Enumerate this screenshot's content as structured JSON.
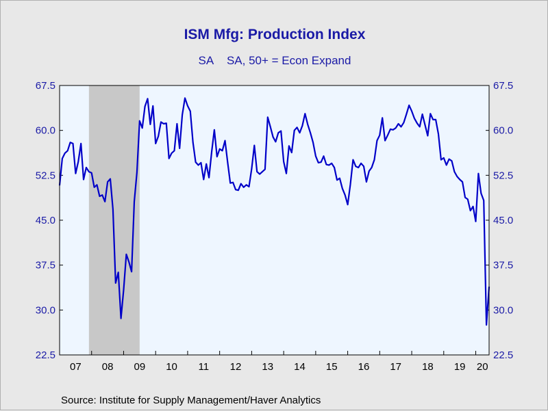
{
  "header": {
    "title": "ISM Mfg: Production Index",
    "subtitle_left": "SA",
    "subtitle_right": "SA, 50+ = Econ Expand"
  },
  "footer": {
    "source": "Source:  Institute for Supply Management/Haver Analytics"
  },
  "colors": {
    "line": "#0000c8",
    "plot_background": "#eef6ff",
    "recession": "#c8c8c8",
    "axis_text": "#1a1aa6"
  },
  "chart_data": {
    "type": "line",
    "title": "ISM Mfg: Production Index",
    "subtitle": "SA    SA, 50+ = Econ Expand",
    "frequency": "monthly",
    "start": "2007-01",
    "xlim": [
      "2007-01",
      "2020-06"
    ],
    "ylim": [
      22.5,
      67.5
    ],
    "y_ticks": [
      "22.5",
      "30.0",
      "37.5",
      "45.0",
      "52.5",
      "60.0",
      "67.5"
    ],
    "x_tick_labels": [
      "07",
      "08",
      "09",
      "10",
      "11",
      "12",
      "13",
      "14",
      "15",
      "16",
      "17",
      "18",
      "19",
      "20"
    ],
    "grid": false,
    "dual_y_axis": true,
    "shaded_period": {
      "label": "recession",
      "start": "2007-12",
      "end": "2009-06"
    },
    "series": [
      {
        "values": [
          50.8,
          55.3,
          56.2,
          56.6,
          58.0,
          57.8,
          52.8,
          54.8,
          57.8,
          51.8,
          53.8,
          53.1,
          52.9,
          50.5,
          50.9,
          49.0,
          49.2,
          48.1,
          51.4,
          51.9,
          46.8,
          34.5,
          36.3,
          28.6,
          33.4,
          39.3,
          38.0,
          36.4,
          48.1,
          53.0,
          61.6,
          60.4,
          64.0,
          65.3,
          61.0,
          64.1,
          57.8,
          59.0,
          61.4,
          61.1,
          61.2,
          55.3,
          56.2,
          56.6,
          61.1,
          57.0,
          62.6,
          65.4,
          64.1,
          63.2,
          58.0,
          54.7,
          54.2,
          54.6,
          51.8,
          54.4,
          52.1,
          56.4,
          60.1,
          55.6,
          56.9,
          56.6,
          58.3,
          54.7,
          51.2,
          51.3,
          50.1,
          50.0,
          51.1,
          50.5,
          50.9,
          50.6,
          53.6,
          57.5,
          53.1,
          52.7,
          53.1,
          53.5,
          62.2,
          60.6,
          58.9,
          58.1,
          59.6,
          59.9,
          54.8,
          52.8,
          57.4,
          56.3,
          60.0,
          60.5,
          59.6,
          60.8,
          62.8,
          61.0,
          59.6,
          58.0,
          55.7,
          54.6,
          54.7,
          55.7,
          54.3,
          54.2,
          54.5,
          53.8,
          51.7,
          52.0,
          50.3,
          49.2,
          47.6,
          51.0,
          55.1,
          54.0,
          53.8,
          54.5,
          54.0,
          51.4,
          53.2,
          53.8,
          55.1,
          58.3,
          59.2,
          62.1,
          58.3,
          59.2,
          60.2,
          60.1,
          60.4,
          61.1,
          60.6,
          61.3,
          62.7,
          64.2,
          63.2,
          62.0,
          61.2,
          60.6,
          62.7,
          60.9,
          59.1,
          62.8,
          61.8,
          61.8,
          59.4,
          55.1,
          55.4,
          54.2,
          55.2,
          54.9,
          53.1,
          52.3,
          51.8,
          51.4,
          48.8,
          48.5,
          46.6,
          47.3,
          44.8,
          52.8,
          49.5,
          48.3,
          27.5,
          33.9
        ]
      }
    ]
  }
}
